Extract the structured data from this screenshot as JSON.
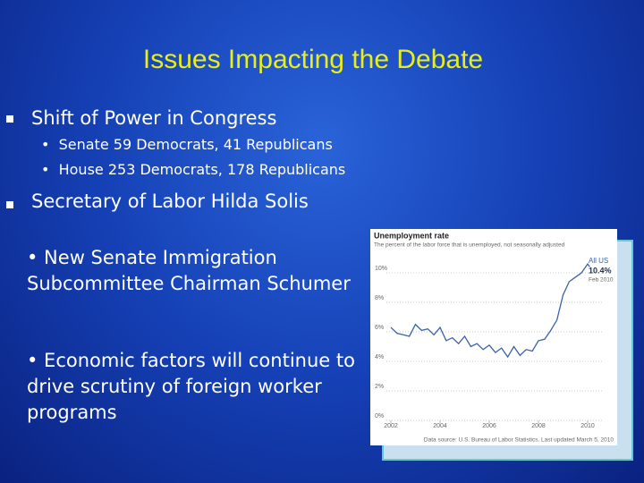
{
  "title": "Issues Impacting the Debate",
  "bullets": [
    {
      "text": "Shift of Power in Congress",
      "subitems": [
        "Senate 59 Democrats, 41 Republicans",
        "House 253 Democrats, 178 Republicans"
      ]
    },
    {
      "text": "Secretary of Labor Hilda Solis"
    }
  ],
  "notes": [
    "• New Senate Immigration Subcommittee Chairman Schumer",
    "• Economic factors will continue to drive scrutiny of foreign worker programs"
  ],
  "chart": {
    "type": "line",
    "title": "Unemployment rate",
    "subtitle": "The percent of the labor force that is unemployed, not seasonally adjusted",
    "x": [
      2002,
      2002.25,
      2002.5,
      2002.75,
      2003,
      2003.25,
      2003.5,
      2003.75,
      2004,
      2004.25,
      2004.5,
      2004.75,
      2005,
      2005.25,
      2005.5,
      2005.75,
      2006,
      2006.25,
      2006.5,
      2006.75,
      2007,
      2007.25,
      2007.5,
      2007.75,
      2008,
      2008.25,
      2008.5,
      2008.75,
      2009,
      2009.25,
      2009.5,
      2009.75,
      2010,
      2010.083
    ],
    "series": [
      {
        "name": "All US",
        "color": "#3a62a8",
        "values": [
          6.3,
          5.9,
          5.8,
          5.7,
          6.5,
          6.1,
          6.2,
          5.8,
          6.3,
          5.4,
          5.6,
          5.2,
          5.7,
          5.0,
          5.2,
          4.8,
          5.1,
          4.6,
          4.9,
          4.3,
          5.0,
          4.4,
          4.8,
          4.7,
          5.4,
          5.5,
          6.1,
          6.8,
          8.5,
          9.4,
          9.7,
          10.0,
          10.6,
          10.4
        ]
      }
    ],
    "annotation": {
      "value_label": "10.4%",
      "date": "Feb 2010"
    },
    "xlim": [
      2001.6,
      2010.4
    ],
    "xticks": [
      2002,
      2004,
      2006,
      2008,
      2010
    ],
    "ylim": [
      0,
      11
    ],
    "yticks": [
      {
        "value": 0,
        "label": "0%"
      },
      {
        "value": 2,
        "label": "2%"
      },
      {
        "value": 4,
        "label": "4%"
      },
      {
        "value": 6,
        "label": "6%"
      },
      {
        "value": 8,
        "label": "8%"
      },
      {
        "value": 10,
        "label": "10%"
      }
    ],
    "grid": true,
    "source": "Data source: U.S. Bureau of Labor Statistics. Last updated March 5, 2010"
  }
}
